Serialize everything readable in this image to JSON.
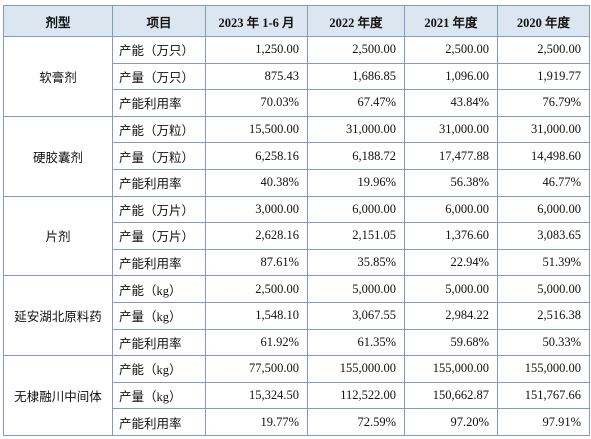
{
  "table": {
    "header": [
      "剂型",
      "项目",
      "2023 年 1-6 月",
      "2022 年度",
      "2021 年度",
      "2020 年度"
    ],
    "groups": [
      {
        "name": "软膏剂",
        "rows": [
          [
            "产能（万只）",
            "1,250.00",
            "2,500.00",
            "2,500.00",
            "2,500.00"
          ],
          [
            "产量（万只）",
            "875.43",
            "1,686.85",
            "1,096.00",
            "1,919.77"
          ],
          [
            "产能利用率",
            "70.03%",
            "67.47%",
            "43.84%",
            "76.79%"
          ]
        ]
      },
      {
        "name": "硬胶囊剂",
        "rows": [
          [
            "产能（万粒）",
            "15,500.00",
            "31,000.00",
            "31,000.00",
            "31,000.00"
          ],
          [
            "产量（万粒）",
            "6,258.16",
            "6,188.72",
            "17,477.88",
            "14,498.60"
          ],
          [
            "产能利用率",
            "40.38%",
            "19.96%",
            "56.38%",
            "46.77%"
          ]
        ]
      },
      {
        "name": "片剂",
        "rows": [
          [
            "产能（万片）",
            "3,000.00",
            "6,000.00",
            "6,000.00",
            "6,000.00"
          ],
          [
            "产量（万片）",
            "2,628.16",
            "2,151.05",
            "1,376.60",
            "3,083.65"
          ],
          [
            "产能利用率",
            "87.61%",
            "35.85%",
            "22.94%",
            "51.39%"
          ]
        ]
      },
      {
        "name": "延安湖北原料药",
        "rows": [
          [
            "产能（kg）",
            "2,500.00",
            "5,000.00",
            "5,000.00",
            "5,000.00"
          ],
          [
            "产量（kg）",
            "1,548.10",
            "3,067.55",
            "2,984.22",
            "2,516.38"
          ],
          [
            "产能利用率",
            "61.92%",
            "61.35%",
            "59.68%",
            "50.33%"
          ]
        ]
      },
      {
        "name": "无棣融川中间体",
        "rows": [
          [
            "产能（kg）",
            "77,500.00",
            "155,000.00",
            "155,000.00",
            "155,000.00"
          ],
          [
            "产量（kg）",
            "15,324.50",
            "112,522.00",
            "150,662.87",
            "151,767.66"
          ],
          [
            "产能利用率",
            "19.77%",
            "72.59%",
            "97.20%",
            "97.91%"
          ]
        ]
      }
    ]
  }
}
